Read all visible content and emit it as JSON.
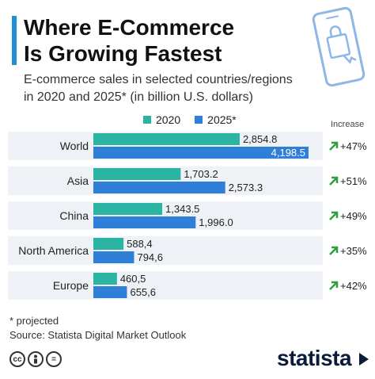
{
  "title_line1": "Where E-Commerce",
  "title_line2": "Is Growing Fastest",
  "subtitle_line1": "E-commerce sales in selected countries/regions",
  "subtitle_line2": "in 2020 and 2025* (in billion U.S. dollars)",
  "increase_label": "Increase",
  "footnote": "* projected",
  "source": "Source: Statista Digital Market Outlook",
  "brand": "statista",
  "colors": {
    "accent": "#1f8fd6",
    "s2020": "#2bb3a4",
    "s2025": "#2f7fd8",
    "arrow": "#2e9e3e",
    "rowbg": "#eef1f6"
  },
  "icons": [
    "phone-shopping-icon",
    "arrow-up-icon",
    "cc-icon",
    "by-icon",
    "nd-icon"
  ],
  "chart_data": {
    "type": "bar",
    "orientation": "horizontal",
    "categories": [
      "World",
      "Asia",
      "China",
      "North America",
      "Europe"
    ],
    "series": [
      {
        "name": "2020",
        "values": [
          2854.8,
          1703.2,
          1343.5,
          588.4,
          460.5
        ],
        "labels": [
          "2,854.8",
          "1,703.2",
          "1,343.5",
          "588,4",
          "460,5"
        ]
      },
      {
        "name": "2025*",
        "values": [
          4198.5,
          2573.3,
          1996.0,
          794.6,
          655.6
        ],
        "labels": [
          "4,198.5",
          "2,573.3",
          "1,996.0",
          "794,6",
          "655,6"
        ]
      }
    ],
    "increase": [
      "+47%",
      "+51%",
      "+49%",
      "+35%",
      "+42%"
    ],
    "xlim": [
      0,
      4198.5
    ],
    "legend_position": "top"
  }
}
